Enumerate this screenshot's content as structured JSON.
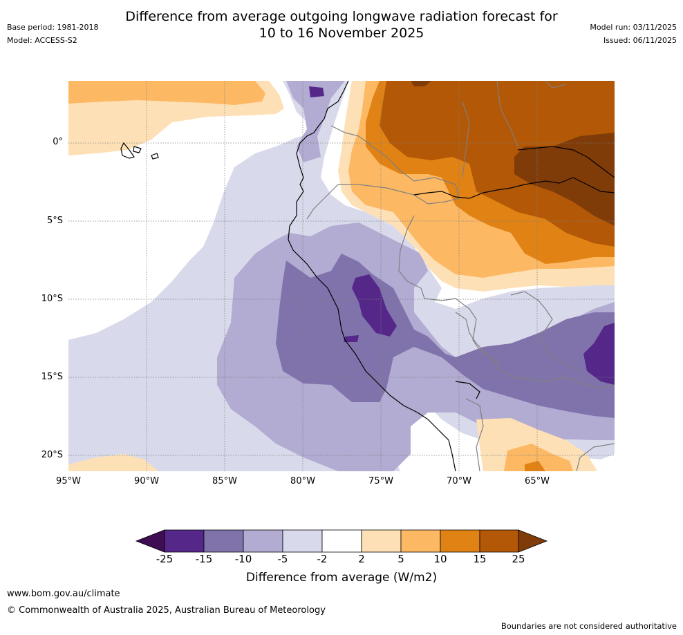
{
  "title": {
    "line1": "Difference from average outgoing longwave radiation forecast for",
    "line2": "10 to 16 November 2025"
  },
  "meta": {
    "base_period": "Base period: 1981-2018",
    "model": "Model: ACCESS-S2",
    "model_run": "Model run: 03/11/2025",
    "issued": "Issued: 06/11/2025"
  },
  "map": {
    "latitude_labels": [
      "0°",
      "5°S",
      "10°S",
      "15°S",
      "20°S"
    ],
    "longitude_labels": [
      "95°W",
      "90°W",
      "85°W",
      "80°W",
      "75°W",
      "70°W",
      "65°W"
    ]
  },
  "colorbar": {
    "ticks": [
      "-25",
      "-15",
      "-10",
      "-5",
      "-2",
      "2",
      "5",
      "10",
      "15",
      "25"
    ],
    "colors": [
      "#3f0d52",
      "#542788",
      "#8073ac",
      "#b2abd2",
      "#d8daeb",
      "#ffffff",
      "#fee0b6",
      "#fdb863",
      "#e08214",
      "#b35806",
      "#7f3b08"
    ],
    "label": "Difference from average (W/m2)"
  },
  "footer": {
    "website": "www.bom.gov.au/climate",
    "copyright": "© Commonwealth of Australia 2025, Australian Bureau of Meteorology",
    "disclaimer": "Boundaries are not considered authoritative"
  }
}
